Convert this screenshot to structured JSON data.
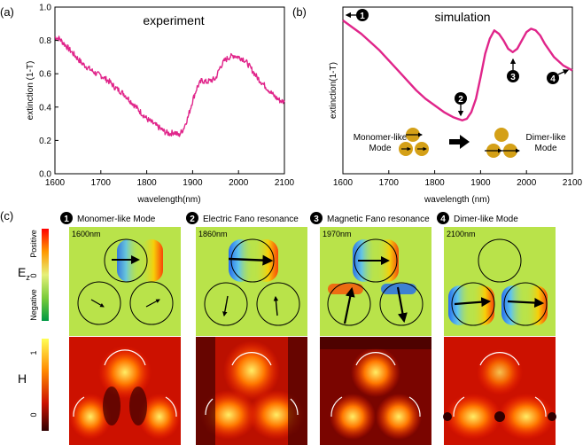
{
  "panel_labels": {
    "a": "(a)",
    "b": "(b)",
    "c": "(c)"
  },
  "chart_data": [
    {
      "type": "line",
      "id": "experiment",
      "title": "experiment",
      "xlabel": "wavelength(nm)",
      "ylabel": "extinction (1-T)",
      "xlim": [
        1600,
        2100
      ],
      "ylim": [
        0.0,
        1.0
      ],
      "xticks": [
        1600,
        1700,
        1800,
        1900,
        2000,
        2100
      ],
      "yticks": [
        0.0,
        0.2,
        0.4,
        0.6,
        0.8,
        1.0
      ],
      "grid": false,
      "color": "#e0258a",
      "x": [
        1600,
        1610,
        1620,
        1630,
        1640,
        1650,
        1660,
        1670,
        1680,
        1690,
        1700,
        1710,
        1720,
        1730,
        1740,
        1750,
        1760,
        1770,
        1780,
        1790,
        1800,
        1810,
        1820,
        1830,
        1840,
        1850,
        1860,
        1870,
        1880,
        1890,
        1900,
        1910,
        1920,
        1930,
        1940,
        1950,
        1960,
        1970,
        1980,
        1990,
        2000,
        2010,
        2020,
        2030,
        2040,
        2050,
        2060,
        2070,
        2080,
        2090,
        2100
      ],
      "y": [
        0.82,
        0.81,
        0.78,
        0.75,
        0.72,
        0.69,
        0.66,
        0.64,
        0.62,
        0.6,
        0.59,
        0.57,
        0.55,
        0.52,
        0.5,
        0.48,
        0.45,
        0.42,
        0.39,
        0.36,
        0.33,
        0.31,
        0.29,
        0.27,
        0.25,
        0.24,
        0.25,
        0.23,
        0.27,
        0.34,
        0.44,
        0.52,
        0.56,
        0.55,
        0.56,
        0.57,
        0.64,
        0.68,
        0.7,
        0.71,
        0.7,
        0.69,
        0.66,
        0.62,
        0.58,
        0.55,
        0.52,
        0.49,
        0.46,
        0.44,
        0.43
      ]
    },
    {
      "type": "line",
      "id": "simulation",
      "title": "simulation",
      "xlabel": "wavelength (nm)",
      "ylabel": "extinction(1-T)",
      "xlim": [
        1600,
        2100
      ],
      "ylim": [
        0.0,
        1.0
      ],
      "xticks": [
        1600,
        1700,
        1800,
        1900,
        2000,
        2100
      ],
      "yticks": [
        0.0,
        0.2,
        0.4,
        0.6,
        0.8,
        1.0
      ],
      "grid": false,
      "color": "#e0258a",
      "x": [
        1600,
        1620,
        1640,
        1660,
        1680,
        1700,
        1720,
        1740,
        1760,
        1780,
        1800,
        1820,
        1840,
        1850,
        1860,
        1870,
        1880,
        1890,
        1900,
        1910,
        1920,
        1930,
        1940,
        1950,
        1960,
        1970,
        1980,
        1990,
        2000,
        2010,
        2020,
        2030,
        2040,
        2060,
        2080,
        2100
      ],
      "y": [
        0.92,
        0.88,
        0.84,
        0.79,
        0.74,
        0.68,
        0.62,
        0.56,
        0.5,
        0.45,
        0.41,
        0.37,
        0.34,
        0.33,
        0.32,
        0.33,
        0.37,
        0.45,
        0.58,
        0.72,
        0.81,
        0.86,
        0.84,
        0.8,
        0.75,
        0.73,
        0.75,
        0.8,
        0.85,
        0.87,
        0.86,
        0.83,
        0.78,
        0.7,
        0.65,
        0.62
      ],
      "markers": [
        {
          "num": "1",
          "x": 1600,
          "y": 0.93
        },
        {
          "num": "2",
          "x": 1860,
          "y": 0.32
        },
        {
          "num": "3",
          "x": 1970,
          "y": 0.73
        },
        {
          "num": "4",
          "x": 2100,
          "y": 0.62
        }
      ],
      "annotations": {
        "monomer_line1": "Monomer-like",
        "monomer_line2": "Mode",
        "dimer_line1": "Dimer-like",
        "dimer_line2": "Mode"
      }
    }
  ],
  "field_maps": {
    "ez_label": "E",
    "ez_subscript": "z",
    "h_label": "H",
    "ez_scale": {
      "top": "Positive",
      "mid": "0",
      "bottom": "Negative"
    },
    "h_scale": {
      "top": "1",
      "bottom": "0"
    },
    "columns": [
      {
        "num": "1",
        "title": "Monomer-like Mode",
        "wavelength": "1600nm"
      },
      {
        "num": "2",
        "title": "Electric Fano resonance",
        "wavelength": "1860nm"
      },
      {
        "num": "3",
        "title": "Magnetic Fano resonance",
        "wavelength": "1970nm"
      },
      {
        "num": "4",
        "title": "Dimer-like Mode",
        "wavelength": "2100nm"
      }
    ]
  },
  "colors": {
    "curve": "#e0258a",
    "particle": "#d4a017",
    "field_bg": "#b9e34a",
    "h_dark": "#3a0000",
    "h_hot": "#ff4400"
  }
}
